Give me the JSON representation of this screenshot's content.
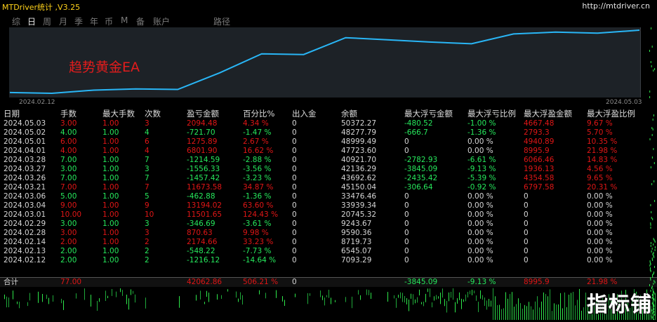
{
  "title": "MTDriver统计 ,V3.25",
  "url": "http://mtdriver.cn",
  "tabs": [
    "综",
    "日",
    "周",
    "月",
    "季",
    "年",
    "币",
    "M",
    "备",
    "账户",
    "路径"
  ],
  "active_tab": "日",
  "chart_label": "趋势黄金EA",
  "chart_start_date": "2024.02.12",
  "chart_end_date": "2024.05.03",
  "columns": [
    "日期",
    "手数",
    "最大手数",
    "次数",
    "盈亏金额",
    "百分比%",
    "出入金",
    "余额",
    "最大浮亏金额",
    "最大浮亏比例",
    "最大浮盈金额",
    "最大浮盈比例"
  ],
  "rows": [
    {
      "c": [
        "2024.05.03",
        "3.00",
        "1.00",
        "3",
        "2094.48",
        "4.34 %",
        "0",
        "50372.27",
        "-480.52",
        "-1.00 %",
        "4667.48",
        "9.67 %"
      ],
      "t": "red"
    },
    {
      "c": [
        "2024.05.02",
        "4.00",
        "1.00",
        "4",
        "-721.70",
        "-1.47 %",
        "0",
        "48277.79",
        "-666.7",
        "-1.36 %",
        "2793.3",
        "5.70 %"
      ],
      "t": "green"
    },
    {
      "c": [
        "2024.05.01",
        "6.00",
        "1.00",
        "6",
        "1275.89",
        "2.67 %",
        "0",
        "48999.49",
        "0",
        "0.00 %",
        "4940.89",
        "10.35 %"
      ],
      "t": "red"
    },
    {
      "c": [
        "2024.04.01",
        "4.00",
        "1.00",
        "4",
        "6801.90",
        "16.62 %",
        "0",
        "47723.60",
        "0",
        "0.00 %",
        "8995.9",
        "21.98 %"
      ],
      "t": "red"
    },
    {
      "c": [
        "2024.03.28",
        "7.00",
        "1.00",
        "7",
        "-1214.59",
        "-2.88 %",
        "0",
        "40921.70",
        "-2782.93",
        "-6.61 %",
        "6066.46",
        "14.83 %"
      ],
      "t": "green"
    },
    {
      "c": [
        "2024.03.27",
        "3.00",
        "1.00",
        "3",
        "-1556.33",
        "-3.56 %",
        "0",
        "42136.29",
        "-3845.09",
        "-9.13 %",
        "1936.13",
        "4.56 %"
      ],
      "t": "green"
    },
    {
      "c": [
        "2024.03.26",
        "7.00",
        "1.00",
        "7",
        "-1457.42",
        "-3.23 %",
        "0",
        "43692.62",
        "-2435.42",
        "-5.39 %",
        "4354.58",
        "9.65 %"
      ],
      "t": "green"
    },
    {
      "c": [
        "2024.03.21",
        "7.00",
        "1.00",
        "7",
        "11673.58",
        "34.87 %",
        "0",
        "45150.04",
        "-306.64",
        "-0.92 %",
        "6797.58",
        "20.31 %"
      ],
      "t": "red"
    },
    {
      "c": [
        "2024.03.06",
        "5.00",
        "1.00",
        "5",
        "-462.88",
        "-1.36 %",
        "0",
        "33476.46",
        "0",
        "0.00 %",
        "0",
        "0.00 %"
      ],
      "t": "green"
    },
    {
      "c": [
        "2024.03.04",
        "9.00",
        "1.00",
        "9",
        "13194.02",
        "63.60 %",
        "0",
        "33939.34",
        "0",
        "0.00 %",
        "0",
        "0.00 %"
      ],
      "t": "red"
    },
    {
      "c": [
        "2024.03.01",
        "10.00",
        "1.00",
        "10",
        "11501.65",
        "124.43 %",
        "0",
        "20745.32",
        "0",
        "0.00 %",
        "0",
        "0.00 %"
      ],
      "t": "red"
    },
    {
      "c": [
        "2024.02.29",
        "3.00",
        "1.00",
        "3",
        "-346.69",
        "-3.61 %",
        "0",
        "9243.67",
        "0",
        "0.00 %",
        "0",
        "0.00 %"
      ],
      "t": "green"
    },
    {
      "c": [
        "2024.02.28",
        "3.00",
        "1.00",
        "3",
        "870.63",
        "9.98 %",
        "0",
        "9590.36",
        "0",
        "0.00 %",
        "0",
        "0.00 %"
      ],
      "t": "red"
    },
    {
      "c": [
        "2024.02.14",
        "2.00",
        "1.00",
        "2",
        "2174.66",
        "33.23 %",
        "0",
        "8719.73",
        "0",
        "0.00 %",
        "0",
        "0.00 %"
      ],
      "t": "red"
    },
    {
      "c": [
        "2024.02.13",
        "2.00",
        "1.00",
        "2",
        "-548.22",
        "-7.73 %",
        "0",
        "6545.07",
        "0",
        "0.00 %",
        "0",
        "0.00 %"
      ],
      "t": "green"
    },
    {
      "c": [
        "2024.02.12",
        "2.00",
        "1.00",
        "2",
        "-1216.12",
        "-14.64 %",
        "0",
        "7093.29",
        "0",
        "0.00 %",
        "0",
        "0.00 %"
      ],
      "t": "green"
    }
  ],
  "totals": [
    "合计",
    "77.00",
    "",
    "",
    "42062.86",
    "506.21 %",
    "0",
    "",
    "-3845.09",
    "-9.13 %",
    "8995.9",
    "21.98 %"
  ],
  "watermark": "指标铺",
  "colors": {
    "profit": "#e01616",
    "loss": "#26e85c",
    "line": "#29b6f6",
    "chart_bg": "#1d2227"
  }
}
